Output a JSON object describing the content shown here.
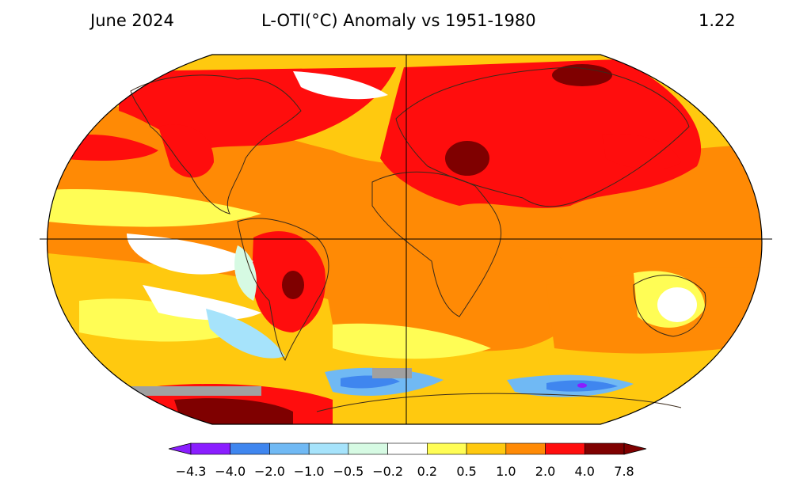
{
  "header": {
    "date": "June 2024",
    "title": "L-OTI(°C) Anomaly vs 1951-1980",
    "global_mean": "1.22"
  },
  "colorbar": {
    "labels": [
      "−4.3",
      "−4.0",
      "−2.0",
      "−1.0",
      "−0.5",
      "−0.2",
      "0.2",
      "0.5",
      "1.0",
      "2.0",
      "4.0",
      "7.8"
    ],
    "colors": [
      "#8a1eff",
      "#3f86ef",
      "#70b9f4",
      "#a6e3fb",
      "#d6fae3",
      "#ffffff",
      "#fffd55",
      "#ffc90f",
      "#ff8a05",
      "#ff0d0d",
      "#7f0000"
    ],
    "extend_low_color": "#8a1eff",
    "extend_high_color": "#7f0000"
  },
  "map_colors": {
    "ocean_base": "#ffc90f",
    "frame": "#000000",
    "missing": "#a0a0a0"
  }
}
